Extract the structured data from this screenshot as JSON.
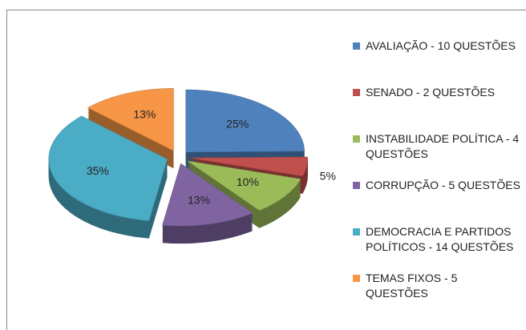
{
  "chart_data": {
    "type": "pie",
    "categories": [
      "AVALIAÇÃO - 10 QUESTÕES",
      "SENADO - 2 QUESTÕES",
      "INSTABILIDADE POLÍTICA - 4 QUESTÕES",
      "CORRUPÇÃO - 5 QUESTÕES",
      "DEMOCRACIA E PARTIDOS POLÍTICOS - 14 QUESTÕES",
      "TEMAS FIXOS - 5 QUESTÕES"
    ],
    "values": [
      25,
      5,
      10,
      13,
      35,
      13
    ],
    "value_labels": [
      "25%",
      "5%",
      "10%",
      "13%",
      "35%",
      "13%"
    ],
    "colors": [
      "#4f81bd",
      "#c0504d",
      "#9bbb59",
      "#8064a2",
      "#4bacc6",
      "#f79646"
    ],
    "legend": "right"
  }
}
